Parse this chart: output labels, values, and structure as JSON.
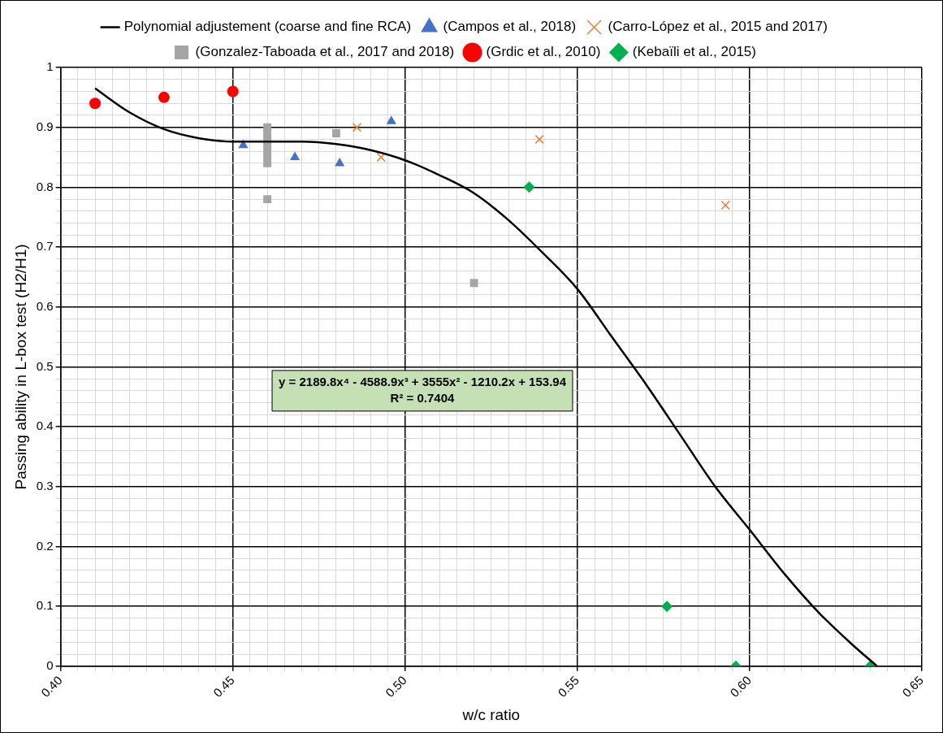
{
  "chart_data": {
    "type": "scatter",
    "xlabel": "w/c ratio",
    "ylabel": "Passing ability in L-box test (H2/H1)",
    "xlim": [
      0.4,
      0.65
    ],
    "ylim": [
      0,
      1
    ],
    "xticks": [
      {
        "value": 0.4,
        "label": "0.40"
      },
      {
        "value": 0.405,
        "label": null
      },
      {
        "value": 0.41,
        "label": null
      },
      {
        "value": 0.415,
        "label": null
      },
      {
        "value": 0.42,
        "label": null
      },
      {
        "value": 0.425,
        "label": null
      },
      {
        "value": 0.43,
        "label": null
      },
      {
        "value": 0.435,
        "label": null
      },
      {
        "value": 0.44,
        "label": null
      },
      {
        "value": 0.445,
        "label": null
      },
      {
        "value": 0.45,
        "label": "0.45"
      },
      {
        "value": 0.455,
        "label": null
      },
      {
        "value": 0.46,
        "label": null
      },
      {
        "value": 0.465,
        "label": null
      },
      {
        "value": 0.47,
        "label": null
      },
      {
        "value": 0.475,
        "label": null
      },
      {
        "value": 0.48,
        "label": null
      },
      {
        "value": 0.485,
        "label": null
      },
      {
        "value": 0.49,
        "label": null
      },
      {
        "value": 0.495,
        "label": null
      },
      {
        "value": 0.5,
        "label": "0.50"
      },
      {
        "value": 0.505,
        "label": null
      },
      {
        "value": 0.51,
        "label": null
      },
      {
        "value": 0.515,
        "label": null
      },
      {
        "value": 0.52,
        "label": null
      },
      {
        "value": 0.525,
        "label": null
      },
      {
        "value": 0.53,
        "label": null
      },
      {
        "value": 0.535,
        "label": null
      },
      {
        "value": 0.54,
        "label": null
      },
      {
        "value": 0.545,
        "label": null
      },
      {
        "value": 0.55,
        "label": "0.55"
      },
      {
        "value": 0.555,
        "label": null
      },
      {
        "value": 0.56,
        "label": null
      },
      {
        "value": 0.565,
        "label": null
      },
      {
        "value": 0.57,
        "label": null
      },
      {
        "value": 0.575,
        "label": null
      },
      {
        "value": 0.58,
        "label": null
      },
      {
        "value": 0.585,
        "label": null
      },
      {
        "value": 0.59,
        "label": null
      },
      {
        "value": 0.595,
        "label": null
      },
      {
        "value": 0.6,
        "label": "0.60"
      },
      {
        "value": 0.605,
        "label": null
      },
      {
        "value": 0.61,
        "label": null
      },
      {
        "value": 0.615,
        "label": null
      },
      {
        "value": 0.62,
        "label": null
      },
      {
        "value": 0.625,
        "label": null
      },
      {
        "value": 0.63,
        "label": null
      },
      {
        "value": 0.635,
        "label": null
      },
      {
        "value": 0.64,
        "label": null
      },
      {
        "value": 0.645,
        "label": null
      },
      {
        "value": 0.65,
        "label": "0.65"
      }
    ],
    "yticks": [
      0,
      {
        "value": 0.02,
        "label": null
      },
      {
        "value": 0.04,
        "label": null
      },
      {
        "value": 0.06,
        "label": null
      },
      {
        "value": 0.08,
        "label": null
      },
      0.1,
      {
        "value": 0.12,
        "label": null
      },
      {
        "value": 0.14,
        "label": null
      },
      {
        "value": 0.16,
        "label": null
      },
      {
        "value": 0.18,
        "label": null
      },
      0.2,
      {
        "value": 0.22,
        "label": null
      },
      {
        "value": 0.24,
        "label": null
      },
      {
        "value": 0.26,
        "label": null
      },
      {
        "value": 0.28,
        "label": null
      },
      0.3,
      {
        "value": 0.32,
        "label": null
      },
      {
        "value": 0.34,
        "label": null
      },
      {
        "value": 0.36,
        "label": null
      },
      {
        "value": 0.38,
        "label": null
      },
      0.4,
      {
        "value": 0.42,
        "label": null
      },
      {
        "value": 0.44,
        "label": null
      },
      {
        "value": 0.46,
        "label": null
      },
      {
        "value": 0.48,
        "label": null
      },
      0.5,
      {
        "value": 0.52,
        "label": null
      },
      {
        "value": 0.54,
        "label": null
      },
      {
        "value": 0.56,
        "label": null
      },
      {
        "value": 0.58,
        "label": null
      },
      0.6,
      {
        "value": 0.62,
        "label": null
      },
      {
        "value": 0.64,
        "label": null
      },
      {
        "value": 0.66,
        "label": null
      },
      {
        "value": 0.68,
        "label": null
      },
      0.7,
      {
        "value": 0.72,
        "label": null
      },
      {
        "value": 0.74,
        "label": null
      },
      {
        "value": 0.76,
        "label": null
      },
      {
        "value": 0.78,
        "label": null
      },
      0.8,
      {
        "value": 0.82,
        "label": null
      },
      {
        "value": 0.84,
        "label": null
      },
      {
        "value": 0.86,
        "label": null
      },
      {
        "value": 0.88,
        "label": null
      },
      0.9,
      {
        "value": 0.92,
        "label": null
      },
      {
        "value": 0.94,
        "label": null
      },
      {
        "value": 0.96,
        "label": null
      },
      {
        "value": 0.98,
        "label": null
      },
      1
    ],
    "grid": true,
    "legend": "top",
    "annotations": [
      "y = 2189.8x⁴ - 4588.9x³ + 3555x² - 1210.2x + 153.94",
      "R² = 0.7404"
    ],
    "series": [
      {
        "name": "(Campos et al., 2018)",
        "color": "#4472c4",
        "marker": "triangle",
        "x": [
          0.453,
          0.468,
          0.481,
          0.496
        ],
        "values": [
          0.87,
          0.85,
          0.84,
          0.91
        ]
      },
      {
        "name": "(Carro-López et al., 2015 and 2017)",
        "color": "#ed7d31",
        "marker": "cross",
        "x": [
          0.486,
          0.493,
          0.539,
          0.593
        ],
        "values": [
          0.9,
          0.85,
          0.88,
          0.77
        ]
      },
      {
        "name": "(Gonzalez-Taboada et al., 2017 and 2018)",
        "color": "#a5a5a5",
        "marker": "square",
        "x": [
          0.46,
          0.46,
          0.46,
          0.46,
          0.46,
          0.46,
          0.46,
          0.46,
          0.48,
          0.52
        ],
        "values": [
          0.78,
          0.84,
          0.85,
          0.86,
          0.87,
          0.88,
          0.89,
          0.9,
          0.89,
          0.64
        ]
      },
      {
        "name": "(Grdic et al., 2010)",
        "color": "#ff0000",
        "marker": "circle",
        "x": [
          0.41,
          0.43,
          0.45
        ],
        "values": [
          0.94,
          0.95,
          0.96
        ]
      },
      {
        "name": "(Kebaïli et al., 2015)",
        "color": "#00b050",
        "marker": "diamond",
        "x": [
          0.536,
          0.576,
          0.596,
          0.635
        ],
        "values": [
          0.8,
          0.1,
          0,
          0
        ]
      },
      {
        "name": "Polynomial adjustement (coarse and fine RCA)",
        "type": "line",
        "color": "#000000",
        "marker": "none",
        "line_style": "solid",
        "x": [
          0.41,
          0.42,
          0.43,
          0.44,
          0.45,
          0.46,
          0.47,
          0.48,
          0.49,
          0.5,
          0.51,
          0.52,
          0.53,
          0.54,
          0.55,
          0.56,
          0.57,
          0.58,
          0.59,
          0.6,
          0.61,
          0.62,
          0.63,
          0.637
        ],
        "values": [
          0.965,
          0.925,
          0.897,
          0.882,
          0.876,
          0.876,
          0.876,
          0.872,
          0.862,
          0.845,
          0.82,
          0.79,
          0.745,
          0.69,
          0.63,
          0.55,
          0.47,
          0.385,
          0.3,
          0.228,
          0.155,
          0.09,
          0.035,
          0
        ]
      }
    ]
  }
}
